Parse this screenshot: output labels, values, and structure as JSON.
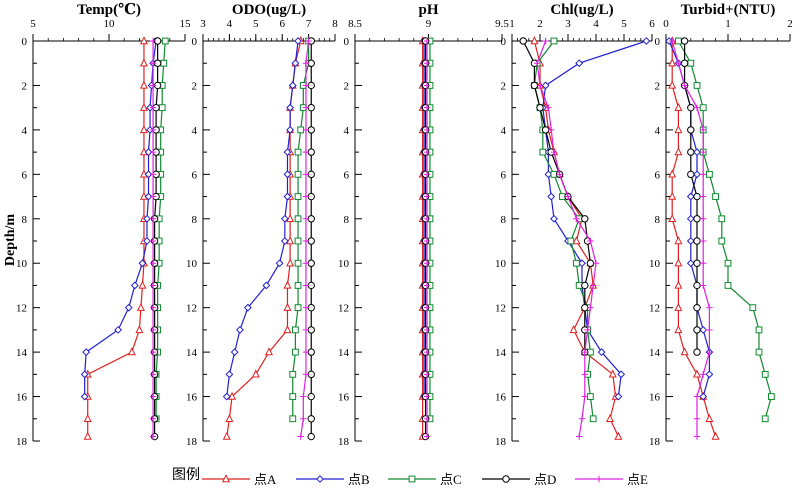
{
  "chart_data": {
    "type": "line",
    "ylabel": "Depth/m",
    "depth": [
      0,
      1,
      2,
      3,
      4,
      5,
      6,
      7,
      8,
      9,
      10,
      11,
      12,
      13,
      14,
      15,
      16,
      17,
      17.8
    ],
    "yticks": [
      0,
      2,
      4,
      6,
      8,
      10,
      12,
      14,
      16,
      18
    ],
    "ylim": [
      0,
      18
    ],
    "legend_title": "图例",
    "series_names": [
      "点A",
      "点B",
      "点C",
      "点D",
      "点E"
    ],
    "series_colors": [
      "#e02020",
      "#2020d0",
      "#108a30",
      "#000000",
      "#e020e0"
    ],
    "series_markers": [
      "triangle",
      "diamond",
      "square",
      "circle",
      "plus"
    ],
    "panels": [
      {
        "title": "Temp(℃)",
        "xlim": [
          5,
          15
        ],
        "xticks": [
          5,
          10,
          15
        ],
        "xtick_labels": [
          "5",
          "10",
          "15"
        ],
        "series": [
          {
            "name": "点A",
            "values": [
              12.3,
              12.3,
              12.3,
              12.3,
              12.3,
              12.3,
              12.3,
              12.3,
              12.3,
              12.3,
              12.3,
              12.2,
              12.1,
              12.0,
              11.5,
              8.6,
              8.6,
              8.6,
              8.6
            ]
          },
          {
            "name": "点B",
            "values": [
              13.1,
              12.9,
              12.8,
              12.7,
              12.7,
              12.6,
              12.6,
              12.6,
              12.5,
              12.5,
              12.2,
              11.7,
              11.3,
              10.6,
              8.5,
              8.4,
              8.4,
              null,
              null
            ]
          },
          {
            "name": "点C",
            "values": [
              13.7,
              13.6,
              13.5,
              13.5,
              13.4,
              13.4,
              13.4,
              13.4,
              13.3,
              13.3,
              13.3,
              13.2,
              13.2,
              13.2,
              13.2,
              13.1,
              13.1,
              13.1,
              null
            ]
          },
          {
            "name": "点D",
            "values": [
              13.2,
              13.2,
              13.2,
              13.1,
              13.1,
              13.1,
              13.1,
              13.1,
              13.0,
              13.0,
              13.0,
              13.0,
              13.0,
              13.0,
              13.0,
              13.0,
              13.0,
              13.0,
              13.0
            ]
          },
          {
            "name": "点E",
            "values": [
              12.9,
              12.9,
              12.9,
              12.9,
              12.9,
              12.9,
              12.9,
              12.9,
              12.9,
              12.9,
              12.9,
              12.9,
              12.9,
              12.9,
              12.9,
              12.9,
              12.9,
              12.9,
              12.9
            ]
          }
        ]
      },
      {
        "title": "ODO(ug/L)",
        "xlim": [
          3,
          8
        ],
        "xticks": [
          3,
          4,
          5,
          6,
          7,
          8
        ],
        "xtick_labels": [
          "3",
          "4",
          "5",
          "6",
          "7",
          "8"
        ],
        "series": [
          {
            "name": "点A",
            "values": [
              6.7,
              6.5,
              6.4,
              6.3,
              6.3,
              6.3,
              6.3,
              6.3,
              6.3,
              6.3,
              6.3,
              6.2,
              6.2,
              6.2,
              5.5,
              5.0,
              4.1,
              4.0,
              3.9
            ]
          },
          {
            "name": "点B",
            "values": [
              6.6,
              6.5,
              6.4,
              6.3,
              6.3,
              6.2,
              6.2,
              6.2,
              6.1,
              6.1,
              5.9,
              5.4,
              4.7,
              4.4,
              4.2,
              4.0,
              3.9,
              null,
              null
            ]
          },
          {
            "name": "点C",
            "values": [
              7.0,
              7.0,
              6.8,
              6.8,
              6.7,
              6.6,
              6.6,
              6.6,
              6.6,
              6.6,
              6.6,
              6.6,
              6.6,
              6.5,
              6.5,
              6.4,
              6.4,
              6.4,
              null
            ]
          },
          {
            "name": "点D",
            "values": [
              7.1,
              7.1,
              7.1,
              7.1,
              7.1,
              7.1,
              7.1,
              7.1,
              7.1,
              7.1,
              7.1,
              7.1,
              7.1,
              7.1,
              7.1,
              7.1,
              7.1,
              7.1,
              7.1
            ]
          },
          {
            "name": "点E",
            "values": [
              7.0,
              6.9,
              6.9,
              6.9,
              6.9,
              6.9,
              6.9,
              6.9,
              6.9,
              6.9,
              6.9,
              6.9,
              6.9,
              6.9,
              6.9,
              6.9,
              6.8,
              6.8,
              6.7
            ]
          }
        ]
      },
      {
        "title": "pH",
        "xlim": [
          8.5,
          9.5
        ],
        "xticks": [
          8.5,
          9,
          9.5
        ],
        "xtick_labels": [
          "8.5",
          "9",
          "9.5"
        ],
        "series": [
          {
            "name": "点A",
            "values": [
              8.96,
              8.96,
              8.96,
              8.96,
              8.96,
              8.96,
              8.96,
              8.96,
              8.96,
              8.96,
              8.96,
              8.96,
              8.96,
              8.96,
              8.96,
              8.96,
              8.96,
              8.96,
              8.96
            ]
          },
          {
            "name": "点B",
            "values": [
              8.97,
              8.97,
              8.97,
              8.97,
              8.97,
              8.97,
              8.97,
              8.97,
              8.97,
              8.97,
              8.97,
              8.97,
              8.97,
              8.97,
              8.97,
              8.97,
              8.97,
              null,
              null
            ]
          },
          {
            "name": "点C",
            "values": [
              9.01,
              9.01,
              9.01,
              9.01,
              9.01,
              9.01,
              9.01,
              9.01,
              9.01,
              9.01,
              9.01,
              9.01,
              9.01,
              9.01,
              9.01,
              9.01,
              9.01,
              9.01,
              null
            ]
          },
          {
            "name": "点D",
            "values": [
              8.98,
              8.98,
              8.98,
              8.98,
              8.98,
              8.98,
              8.98,
              8.98,
              8.98,
              8.98,
              8.98,
              8.98,
              8.98,
              8.98,
              8.98,
              8.98,
              8.98,
              8.98,
              8.98
            ]
          },
          {
            "name": "点E",
            "values": [
              8.99,
              8.99,
              8.99,
              8.99,
              8.99,
              8.99,
              8.99,
              8.99,
              8.99,
              8.99,
              8.99,
              8.99,
              8.99,
              8.99,
              8.99,
              8.99,
              8.99,
              8.99,
              8.99
            ]
          }
        ]
      },
      {
        "title": "Chl(ug/L)",
        "xlim": [
          1,
          6
        ],
        "xticks": [
          1,
          2,
          3,
          4,
          5,
          6
        ],
        "xtick_labels": [
          "1",
          "2",
          "3",
          "4",
          "5",
          "6"
        ],
        "series": [
          {
            "name": "点A",
            "values": [
              1.8,
              2.0,
              2.0,
              2.2,
              2.3,
              2.5,
              2.7,
              3.0,
              3.5,
              3.3,
              3.8,
              3.9,
              3.6,
              3.2,
              3.6,
              4.6,
              4.7,
              4.5,
              4.8
            ]
          },
          {
            "name": "点B",
            "values": [
              5.8,
              3.4,
              2.2,
              2.1,
              2.2,
              2.3,
              2.3,
              2.4,
              2.5,
              3.0,
              3.5,
              3.5,
              3.6,
              3.7,
              4.2,
              4.9,
              4.8,
              null,
              null
            ]
          },
          {
            "name": "点C",
            "values": [
              2.5,
              1.9,
              1.8,
              2.0,
              2.1,
              2.1,
              2.5,
              2.8,
              3.4,
              3.1,
              3.3,
              3.4,
              3.7,
              3.7,
              3.8,
              3.7,
              3.8,
              3.9,
              null
            ]
          },
          {
            "name": "点D",
            "values": [
              1.4,
              1.8,
              1.8,
              2.0,
              2.2,
              2.4,
              2.7,
              3.0,
              3.6,
              3.7,
              3.8,
              3.6,
              3.6,
              3.6,
              3.6,
              null,
              null,
              null,
              null
            ]
          },
          {
            "name": "点E",
            "values": [
              2.2,
              1.9,
              2.0,
              2.3,
              2.4,
              2.5,
              2.7,
              3.0,
              3.3,
              3.8,
              4.0,
              3.9,
              3.8,
              3.7,
              3.6,
              3.6,
              3.6,
              3.5,
              3.4
            ]
          }
        ]
      },
      {
        "title": "Turbid+(NTU)",
        "xlim": [
          0,
          2
        ],
        "xticks": [
          0,
          1,
          2
        ],
        "xtick_labels": [
          "0",
          "1",
          "2"
        ],
        "series": [
          {
            "name": "点A",
            "values": [
              0.1,
              0.1,
              0.1,
              0.2,
              0.2,
              0.2,
              0.1,
              0.1,
              0.1,
              0.2,
              0.2,
              0.2,
              0.2,
              0.2,
              0.3,
              0.5,
              0.6,
              0.7,
              0.8
            ]
          },
          {
            "name": "点B",
            "values": [
              0.05,
              0.2,
              0.3,
              0.4,
              0.4,
              0.5,
              0.5,
              0.4,
              0.4,
              0.4,
              0.4,
              0.5,
              0.5,
              0.6,
              0.7,
              0.7,
              0.6,
              null,
              null
            ]
          },
          {
            "name": "点C",
            "values": [
              0.2,
              0.4,
              0.5,
              0.6,
              0.6,
              0.6,
              0.7,
              0.8,
              0.9,
              0.9,
              1.0,
              1.0,
              1.4,
              1.5,
              1.5,
              1.6,
              1.7,
              1.6,
              null
            ]
          },
          {
            "name": "点D",
            "values": [
              0.3,
              0.3,
              0.3,
              0.4,
              0.4,
              0.4,
              0.4,
              0.5,
              0.5,
              0.5,
              0.5,
              0.5,
              0.5,
              0.5,
              0.5,
              null,
              null,
              null,
              null
            ]
          },
          {
            "name": "点E",
            "values": [
              0.1,
              0.2,
              0.3,
              0.5,
              0.6,
              0.6,
              0.6,
              0.6,
              0.6,
              0.6,
              0.6,
              0.6,
              0.7,
              0.7,
              0.7,
              0.6,
              0.5,
              0.5,
              0.5
            ]
          }
        ]
      }
    ]
  }
}
